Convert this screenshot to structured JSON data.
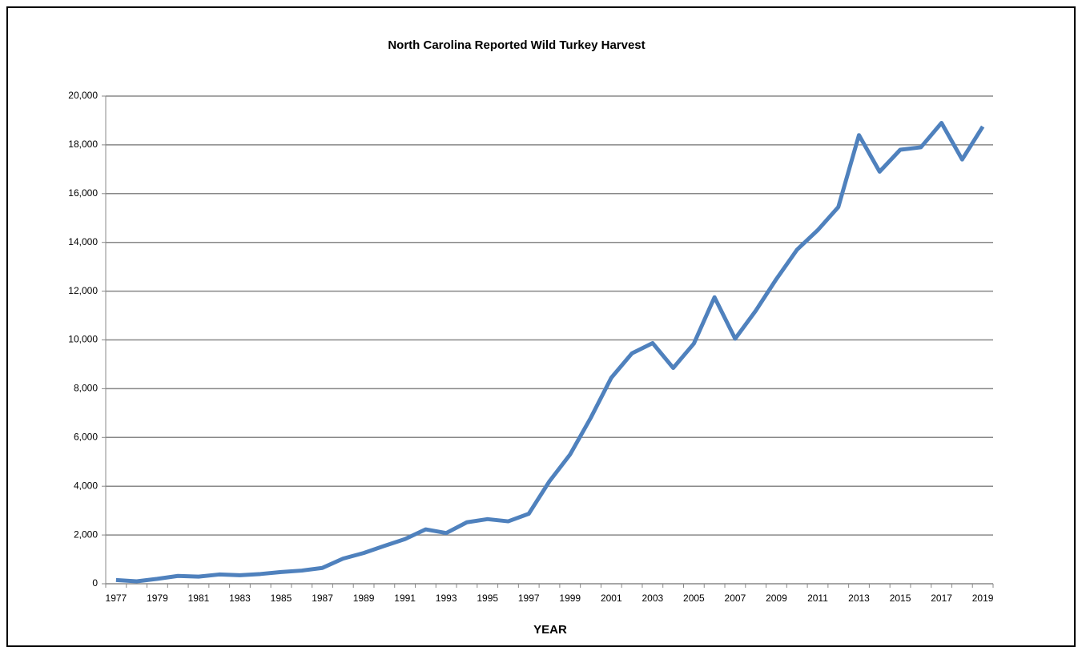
{
  "chart_data": {
    "type": "line",
    "title": "North Carolina Reported Wild Turkey Harvest",
    "x_label": "YEAR",
    "categories": [
      "1977",
      null,
      "1979",
      null,
      "1981",
      null,
      "1983",
      null,
      "1985",
      null,
      "1987",
      null,
      "1989",
      null,
      "1991",
      null,
      "1993",
      null,
      "1995",
      null,
      "1997",
      null,
      "1999",
      null,
      "2001",
      null,
      "2003",
      null,
      "2005",
      null,
      "2007",
      null,
      "2009",
      null,
      "2011",
      null,
      "2013",
      null,
      "2015",
      null,
      "2017",
      null,
      "2019"
    ],
    "values": [
      150,
      100,
      200,
      320,
      290,
      380,
      350,
      400,
      480,
      540,
      650,
      1030,
      1260,
      1550,
      1830,
      2230,
      2080,
      2520,
      2650,
      2560,
      2870,
      4200,
      5300,
      6800,
      8450,
      9450,
      9870,
      8850,
      9850,
      11750,
      10050,
      11200,
      12500,
      13700,
      14500,
      15450,
      18400,
      16900,
      17800,
      17900,
      18900,
      17400,
      18750
    ],
    "color": "#4f81bd",
    "ylim": [
      0,
      20000
    ],
    "yticks": [
      0,
      {
        "value": 2000,
        "label": "2,000"
      },
      {
        "value": 4000,
        "label": "4,000"
      },
      {
        "value": 6000,
        "label": "6,000"
      },
      {
        "value": 8000,
        "label": "8,000"
      },
      {
        "value": 10000,
        "label": "10,000"
      },
      {
        "value": 12000,
        "label": "12,000"
      },
      {
        "value": 14000,
        "label": "14,000"
      },
      {
        "value": 16000,
        "label": "16,000"
      },
      {
        "value": 18000,
        "label": "18,000"
      },
      {
        "value": 20000,
        "label": "20,000"
      }
    ],
    "grid": true
  }
}
